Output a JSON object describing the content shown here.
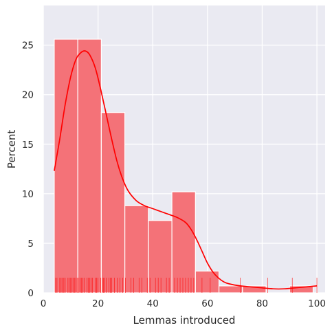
{
  "chart_data": {
    "type": "bar",
    "subtype": "histogram-with-kde-and-rug",
    "title": "",
    "xlabel": "Lemmas introduced",
    "ylabel": "Percent",
    "xlim": [
      0,
      103
    ],
    "ylim": [
      0,
      29
    ],
    "xticks": [
      0,
      20,
      40,
      60,
      80,
      100
    ],
    "yticks": [
      0,
      5,
      10,
      15,
      20,
      25
    ],
    "grid": true,
    "colors": {
      "bar_fill": "#f47278",
      "bar_edge": "#ffffff",
      "kde_line": "#ff0000",
      "rug": "#ff0000",
      "plot_background": "#eaeaf2",
      "grid": "#ffffff"
    },
    "bins": [
      {
        "x0": 4.0,
        "x1": 12.6,
        "value": 25.6
      },
      {
        "x0": 12.6,
        "x1": 21.2,
        "value": 25.6
      },
      {
        "x0": 21.2,
        "x1": 29.8,
        "value": 18.2
      },
      {
        "x0": 29.8,
        "x1": 38.4,
        "value": 8.8
      },
      {
        "x0": 38.4,
        "x1": 47.0,
        "value": 7.3
      },
      {
        "x0": 47.0,
        "x1": 55.6,
        "value": 10.2
      },
      {
        "x0": 55.6,
        "x1": 64.2,
        "value": 2.2
      },
      {
        "x0": 64.2,
        "x1": 72.8,
        "value": 0.7
      },
      {
        "x0": 72.8,
        "x1": 81.4,
        "value": 0.7
      },
      {
        "x0": 81.4,
        "x1": 90.0,
        "value": 0.0
      },
      {
        "x0": 90.0,
        "x1": 98.6,
        "value": 0.7
      }
    ],
    "kde": {
      "x": [
        4,
        6,
        8,
        10,
        12,
        14,
        15.5,
        17,
        19,
        21,
        23,
        25,
        27,
        29,
        31,
        34,
        37,
        40,
        43,
        46,
        49,
        52,
        54,
        56,
        58,
        60,
        62,
        64,
        66,
        68,
        72,
        76,
        80,
        84,
        88,
        92,
        96,
        100
      ],
      "y": [
        12.3,
        15.5,
        19.0,
        21.8,
        23.6,
        24.3,
        24.4,
        24.0,
        22.7,
        20.5,
        18.0,
        15.5,
        13.2,
        11.5,
        10.3,
        9.3,
        8.8,
        8.5,
        8.2,
        7.9,
        7.6,
        7.1,
        6.4,
        5.4,
        4.2,
        3.0,
        2.1,
        1.5,
        1.1,
        0.9,
        0.7,
        0.6,
        0.5,
        0.4,
        0.4,
        0.5,
        0.6,
        0.7
      ]
    },
    "rug": [
      4.5,
      5,
      6,
      6.5,
      7,
      7.5,
      8,
      9,
      9.5,
      10,
      10.5,
      11,
      11.5,
      12,
      12.5,
      13,
      13.5,
      14,
      14.5,
      15,
      16,
      16.5,
      17,
      17.5,
      18,
      19,
      19.5,
      20,
      21,
      21.5,
      22,
      22.5,
      23,
      24,
      24.5,
      25,
      26,
      27,
      28,
      29,
      30,
      32,
      33,
      35,
      36,
      38,
      39,
      41,
      42,
      43,
      45,
      46,
      48,
      49,
      50,
      51,
      52,
      53,
      54,
      55,
      58,
      61,
      72,
      82,
      91,
      100
    ]
  }
}
